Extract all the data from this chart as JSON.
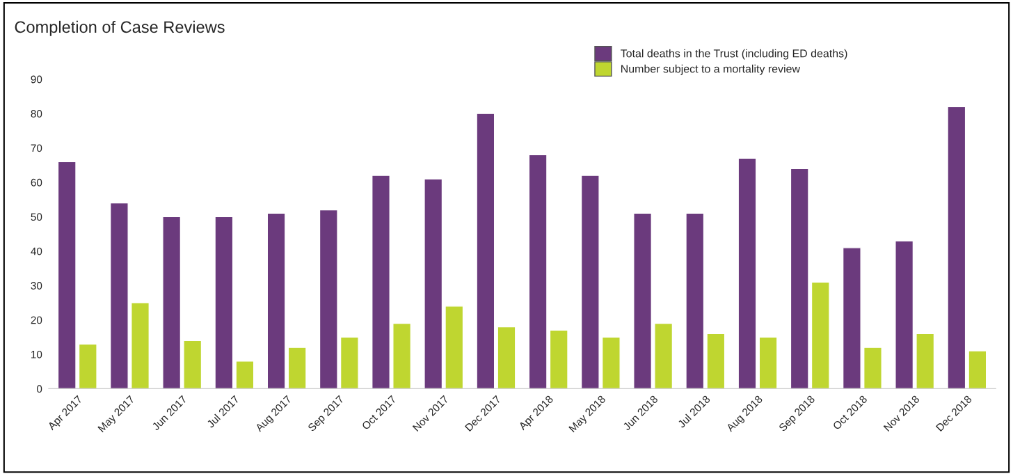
{
  "chart_data": {
    "type": "bar",
    "title": "Completion of Case Reviews",
    "categories": [
      "Apr 2017",
      "May 2017",
      "Jun 2017",
      "Jul 2017",
      "Aug 2017",
      "Sep 2017",
      "Oct 2017",
      "Nov 2017",
      "Dec 2017",
      "Apr 2018",
      "May 2018",
      "Jun 2018",
      "Jul 2018",
      "Aug 2018",
      "Sep 2018",
      "Oct 2018",
      "Nov 2018",
      "Dec 2018"
    ],
    "series": [
      {
        "name": "Total deaths in the Trust (including ED deaths)",
        "color": "#6b3a7d",
        "values": [
          66,
          54,
          50,
          50,
          51,
          52,
          62,
          61,
          80,
          68,
          62,
          51,
          51,
          67,
          64,
          41,
          43,
          82
        ]
      },
      {
        "name": "Number subject to a mortality review",
        "color": "#bfd630",
        "values": [
          13,
          25,
          14,
          8,
          12,
          15,
          19,
          24,
          18,
          17,
          15,
          19,
          16,
          15,
          31,
          12,
          16,
          11
        ]
      }
    ],
    "ylim": [
      0,
      90
    ],
    "yticks": [
      0,
      10,
      20,
      30,
      40,
      50,
      60,
      70,
      80,
      90
    ],
    "grid": false,
    "legend": "top right"
  }
}
